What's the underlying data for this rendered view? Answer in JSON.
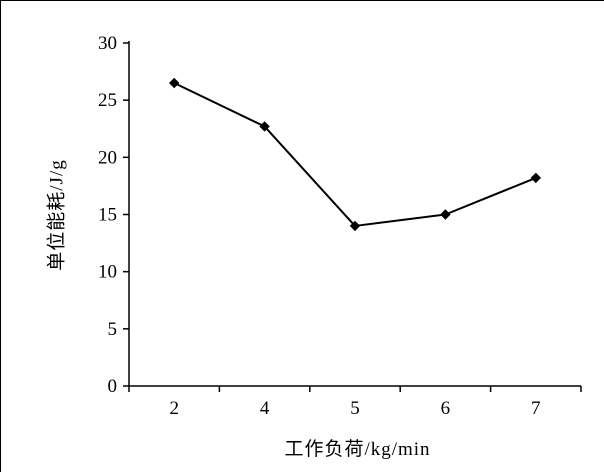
{
  "chart_data": {
    "type": "line",
    "categories": [
      "2",
      "4",
      "5",
      "6",
      "7"
    ],
    "series": [
      {
        "name": "单位能耗",
        "values": [
          26.5,
          22.7,
          14,
          15,
          18.2
        ]
      }
    ],
    "title": "",
    "xlabel": "工作负荷/kg/min",
    "ylabel": "单位能耗/J/g",
    "ylim": [
      0,
      30
    ],
    "yticks": [
      0,
      5,
      10,
      15,
      20,
      25,
      30
    ],
    "grid": false,
    "legend_position": "none",
    "line_color": "#000000",
    "marker": "diamond",
    "marker_color": "#000000",
    "axis_color": "#000000",
    "background_color": "#ffffff"
  }
}
